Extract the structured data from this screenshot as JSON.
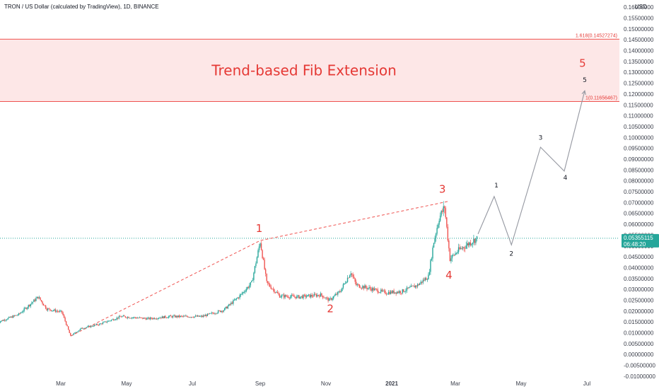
{
  "header": {
    "symbol_title": "TRON / US Dollar (calculated by TradingView), 1D, BINANCE",
    "currency": "USD"
  },
  "colors": {
    "bull": "#26a69a",
    "bear": "#ef5350",
    "fib_zone": "#fde7e7",
    "fib_line": "#ef5350",
    "wave_label_red": "#e53935",
    "projection_line": "#9598a1",
    "price_tag": "#26a69a"
  },
  "fib": {
    "title": "Trend-based Fib Extension",
    "levels": [
      {
        "label": "1.618(0.14527274)",
        "value": 0.14527274
      },
      {
        "label": "1(0.11656467)",
        "value": 0.11656467
      }
    ]
  },
  "current_price": {
    "value": "0.05355115",
    "countdown": "06:48:20",
    "numeric": 0.05355
  },
  "chart_data": {
    "type": "candlestick",
    "title": "TRON / US Dollar (calculated by TradingView), 1D, BINANCE",
    "y_ticks": [
      0.16,
      0.155,
      0.15,
      0.145,
      0.14,
      0.135,
      0.13,
      0.125,
      0.12,
      0.115,
      0.11,
      0.105,
      0.1,
      0.095,
      0.09,
      0.085,
      0.08,
      0.075,
      0.07,
      0.065,
      0.06,
      0.055,
      0.05,
      0.045,
      0.04,
      0.035,
      0.03,
      0.025,
      0.02,
      0.015,
      0.01,
      0.005,
      0.0,
      -0.005,
      -0.01
    ],
    "y_tick_labels": [
      "0.16000000",
      "0.15500000",
      "0.15000000",
      "0.14500000",
      "0.14000000",
      "0.13500000",
      "0.13000000",
      "0.12500000",
      "0.12000000",
      "0.11500000",
      "0.11000000",
      "0.10500000",
      "0.10000000",
      "0.09500000",
      "0.09000000",
      "0.08500000",
      "0.08000000",
      "0.07500000",
      "0.07000000",
      "0.06500000",
      "0.06000000",
      "0.05500000",
      "0.05000000",
      "0.04500000",
      "0.04000000",
      "0.03500000",
      "0.03000000",
      "0.02500000",
      "0.02000000",
      "0.01500000",
      "0.01000000",
      "0.00500000",
      "0.00000000",
      "-0.00500000",
      "-0.01000000"
    ],
    "ylim": [
      -0.011,
      0.162
    ],
    "x_ticks": [
      {
        "label": "Mar",
        "day": 59
      },
      {
        "label": "May",
        "day": 120
      },
      {
        "label": "Jul",
        "day": 181
      },
      {
        "label": "Sep",
        "day": 244
      },
      {
        "label": "Nov",
        "day": 305
      },
      {
        "label": "2021",
        "day": 366
      },
      {
        "label": "Mar",
        "day": 425
      },
      {
        "label": "May",
        "day": 486
      },
      {
        "label": "Jul",
        "day": 547
      }
    ],
    "xlim_days": [
      0,
      620
    ],
    "price_path": [
      {
        "day": 0,
        "price": 0.0148
      },
      {
        "day": 20,
        "price": 0.0185
      },
      {
        "day": 38,
        "price": 0.0265
      },
      {
        "day": 46,
        "price": 0.021
      },
      {
        "day": 60,
        "price": 0.0195
      },
      {
        "day": 68,
        "price": 0.0085
      },
      {
        "day": 78,
        "price": 0.012
      },
      {
        "day": 95,
        "price": 0.014
      },
      {
        "day": 115,
        "price": 0.0175
      },
      {
        "day": 140,
        "price": 0.0165
      },
      {
        "day": 160,
        "price": 0.0175
      },
      {
        "day": 190,
        "price": 0.0175
      },
      {
        "day": 210,
        "price": 0.0205
      },
      {
        "day": 225,
        "price": 0.027
      },
      {
        "day": 236,
        "price": 0.033
      },
      {
        "day": 244,
        "price": 0.052
      },
      {
        "day": 250,
        "price": 0.033
      },
      {
        "day": 262,
        "price": 0.027
      },
      {
        "day": 280,
        "price": 0.0265
      },
      {
        "day": 300,
        "price": 0.0275
      },
      {
        "day": 308,
        "price": 0.025
      },
      {
        "day": 318,
        "price": 0.029
      },
      {
        "day": 328,
        "price": 0.038
      },
      {
        "day": 333,
        "price": 0.032
      },
      {
        "day": 345,
        "price": 0.0305
      },
      {
        "day": 360,
        "price": 0.0285
      },
      {
        "day": 375,
        "price": 0.029
      },
      {
        "day": 390,
        "price": 0.032
      },
      {
        "day": 400,
        "price": 0.036
      },
      {
        "day": 405,
        "price": 0.052
      },
      {
        "day": 410,
        "price": 0.063
      },
      {
        "day": 415,
        "price": 0.068
      },
      {
        "day": 420,
        "price": 0.044
      },
      {
        "day": 428,
        "price": 0.048
      },
      {
        "day": 440,
        "price": 0.052
      },
      {
        "day": 445,
        "price": 0.0535
      }
    ],
    "wave_counts": [
      {
        "label": "1",
        "day": 243,
        "price": 0.0565,
        "color": "red"
      },
      {
        "label": "2",
        "day": 309,
        "price": 0.0195,
        "color": "red"
      },
      {
        "label": "3",
        "day": 413,
        "price": 0.0745,
        "color": "red"
      },
      {
        "label": "4",
        "day": 419,
        "price": 0.035,
        "color": "red"
      },
      {
        "label": "5",
        "day": 543,
        "price": 0.1325,
        "color": "red"
      },
      {
        "label": "1",
        "day": 463,
        "price": 0.077,
        "color": "black"
      },
      {
        "label": "2",
        "day": 477,
        "price": 0.0455,
        "color": "black"
      },
      {
        "label": "3",
        "day": 504,
        "price": 0.099,
        "color": "black"
      },
      {
        "label": "4",
        "day": 527,
        "price": 0.0805,
        "color": "black"
      },
      {
        "label": "5",
        "day": 545,
        "price": 0.1255,
        "color": "black"
      }
    ],
    "wave_trendline": [
      {
        "day": 68,
        "price": 0.0085
      },
      {
        "day": 244,
        "price": 0.0525
      },
      {
        "day": 418,
        "price": 0.0705
      }
    ],
    "projection": [
      {
        "day": 446,
        "price": 0.0555
      },
      {
        "day": 461,
        "price": 0.0728
      },
      {
        "day": 477,
        "price": 0.0505
      },
      {
        "day": 504,
        "price": 0.0955
      },
      {
        "day": 526,
        "price": 0.0845
      },
      {
        "day": 545,
        "price": 0.1215
      }
    ]
  }
}
